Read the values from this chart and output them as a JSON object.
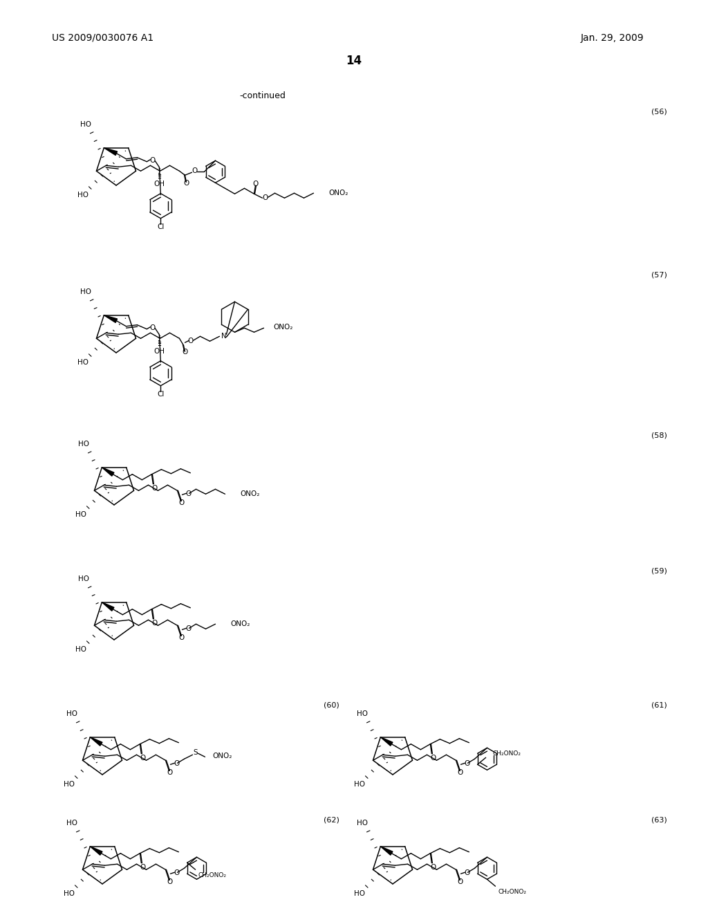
{
  "page_number": "14",
  "patent_number": "US 2009/0030076 A1",
  "patent_date": "Jan. 29, 2009",
  "continued_label": "-continued",
  "background_color": "#ffffff",
  "text_color": "#000000",
  "compound_numbers": [
    "(56)",
    "(57)",
    "(58)",
    "(59)",
    "(60)",
    "(61)",
    "(62)",
    "(63)"
  ],
  "font_size_header": 10,
  "font_size_page": 12,
  "font_size_compound": 8,
  "font_size_atom": 7.5,
  "font_size_continued": 9
}
